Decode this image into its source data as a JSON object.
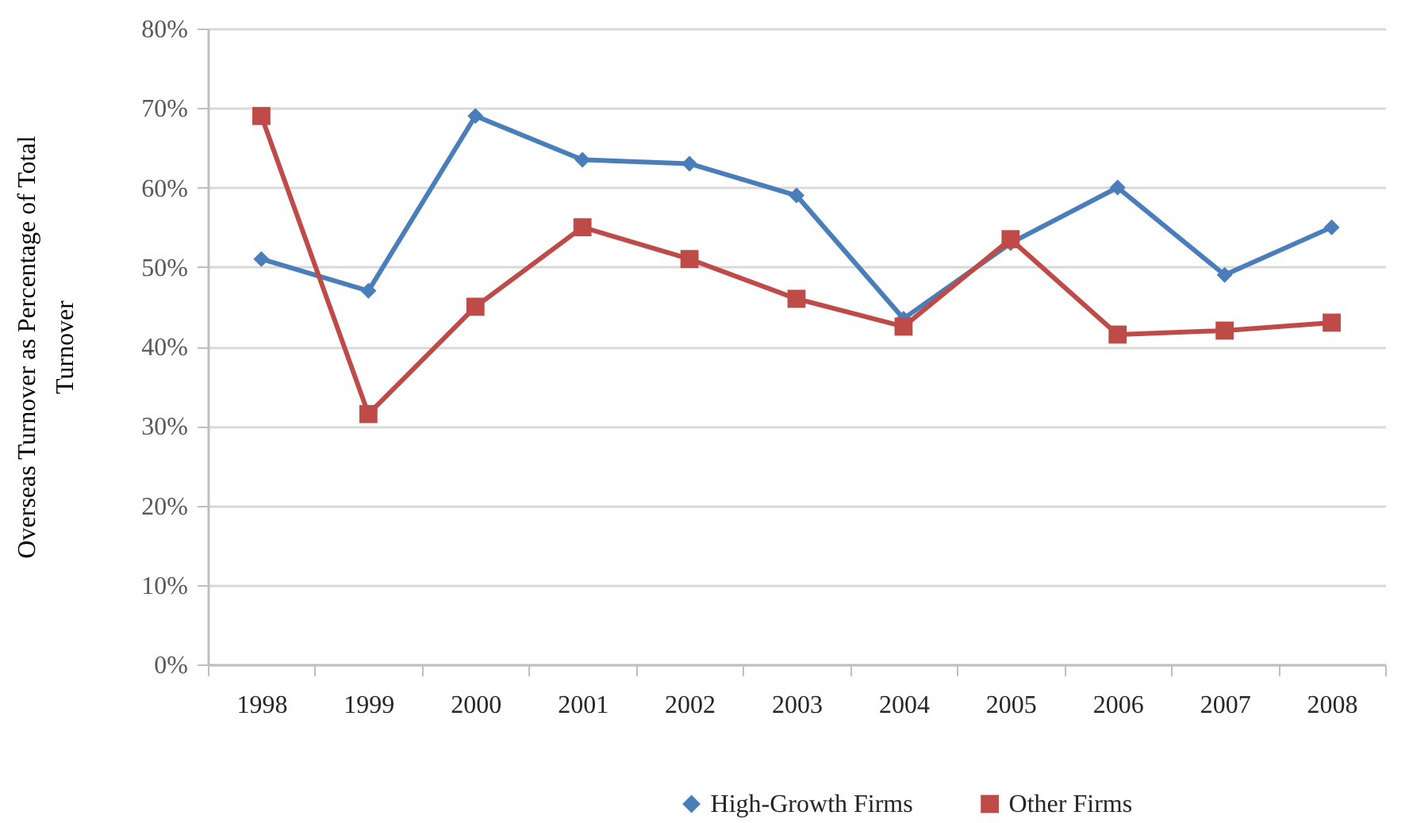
{
  "chart_data": {
    "type": "line",
    "ylabel": "Overseas Turnover as Percentage of Total Turnover",
    "categories": [
      "1998",
      "1999",
      "2000",
      "2001",
      "2002",
      "2003",
      "2004",
      "2005",
      "2006",
      "2007",
      "2008"
    ],
    "series": [
      {
        "name": "High-Growth Firms",
        "color": "#4a7ebb",
        "marker": "diamond",
        "values": [
          51,
          47,
          69,
          63.5,
          63,
          59,
          43.5,
          53,
          60,
          49,
          55
        ]
      },
      {
        "name": "Other Firms",
        "color": "#be4b48",
        "marker": "square",
        "values": [
          69,
          31.5,
          45,
          55,
          51,
          46,
          42.5,
          53.5,
          41.5,
          42,
          43
        ]
      }
    ],
    "ylim": [
      0,
      80
    ],
    "yticks": [
      {
        "value": 0,
        "label": "0%"
      },
      {
        "value": 10,
        "label": "10%"
      },
      {
        "value": 20,
        "label": "20%"
      },
      {
        "value": 30,
        "label": "30%"
      },
      {
        "value": 40,
        "label": "40%"
      },
      {
        "value": 50,
        "label": "50%"
      },
      {
        "value": 60,
        "label": "60%"
      },
      {
        "value": 70,
        "label": "70%"
      },
      {
        "value": 80,
        "label": "80%"
      }
    ],
    "grid": "y",
    "legend": "bottom",
    "line_style": "solid"
  }
}
